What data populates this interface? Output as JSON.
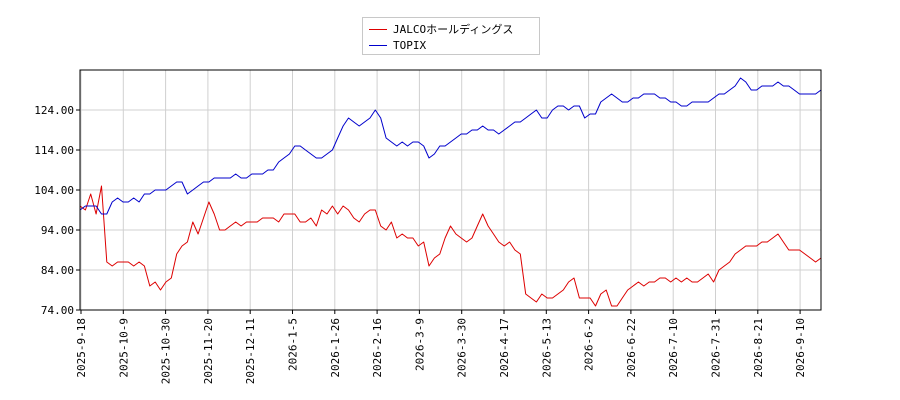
{
  "chart_data": {
    "type": "line",
    "title": "",
    "xlabel": "",
    "ylabel": "",
    "ylim": [
      74,
      134
    ],
    "yticks": [
      74.0,
      84.0,
      94.0,
      104.0,
      114.0,
      124.0
    ],
    "ytick_labels": [
      "74.00",
      "84.00",
      "94.00",
      "104.00",
      "114.00",
      "124.00"
    ],
    "xticks": [
      "2025-9-18",
      "2025-10-9",
      "2025-10-30",
      "2025-11-20",
      "2025-12-11",
      "2026-1-5",
      "2026-1-26",
      "2026-2-16",
      "2026-3-9",
      "2026-3-30",
      "2026-4-17",
      "2026-5-13",
      "2026-6-2",
      "2026-6-22",
      "2026-7-10",
      "2026-7-31",
      "2026-8-21",
      "2026-9-10"
    ],
    "grid": true,
    "legend_position": "top-center",
    "series": [
      {
        "name": "JALCOホールディングス",
        "color": "#dd0000",
        "values": [
          100,
          99,
          103,
          98,
          105,
          86,
          85,
          86,
          86,
          86,
          85,
          86,
          85,
          80,
          81,
          79,
          81,
          82,
          88,
          90,
          91,
          96,
          93,
          97,
          101,
          98,
          94,
          94,
          95,
          96,
          95,
          96,
          96,
          96,
          97,
          97,
          97,
          96,
          98,
          98,
          98,
          96,
          96,
          97,
          95,
          99,
          98,
          100,
          98,
          100,
          99,
          97,
          96,
          98,
          99,
          99,
          95,
          94,
          96,
          92,
          93,
          92,
          92,
          90,
          91,
          85,
          87,
          88,
          92,
          95,
          93,
          92,
          91,
          92,
          95,
          98,
          95,
          93,
          91,
          90,
          91,
          89,
          88,
          78,
          77,
          76,
          78,
          77,
          77,
          78,
          79,
          81,
          82,
          77,
          77,
          77,
          75,
          78,
          79,
          75,
          75,
          77,
          79,
          80,
          81,
          80,
          81,
          81,
          82,
          82,
          81,
          82,
          81,
          82,
          81,
          81,
          82,
          83,
          81,
          84,
          85,
          86,
          88,
          89,
          90,
          90,
          90,
          91,
          91,
          92,
          93,
          91,
          89,
          89,
          89,
          88,
          87,
          86,
          87
        ]
      },
      {
        "name": "TOPIX",
        "color": "#0000cc",
        "values": [
          99,
          100,
          100,
          100,
          98,
          98,
          101,
          102,
          101,
          101,
          102,
          101,
          103,
          103,
          104,
          104,
          104,
          105,
          106,
          106,
          103,
          104,
          105,
          106,
          106,
          107,
          107,
          107,
          107,
          108,
          107,
          107,
          108,
          108,
          108,
          109,
          109,
          111,
          112,
          113,
          115,
          115,
          114,
          113,
          112,
          112,
          113,
          114,
          117,
          120,
          122,
          121,
          120,
          121,
          122,
          124,
          122,
          117,
          116,
          115,
          116,
          115,
          116,
          116,
          115,
          112,
          113,
          115,
          115,
          116,
          117,
          118,
          118,
          119,
          119,
          120,
          119,
          119,
          118,
          119,
          120,
          121,
          121,
          122,
          123,
          124,
          122,
          122,
          124,
          125,
          125,
          124,
          125,
          125,
          122,
          123,
          123,
          126,
          127,
          128,
          127,
          126,
          126,
          127,
          127,
          128,
          128,
          128,
          127,
          127,
          126,
          126,
          125,
          125,
          126,
          126,
          126,
          126,
          127,
          128,
          128,
          129,
          130,
          132,
          131,
          129,
          129,
          130,
          130,
          130,
          131,
          130,
          130,
          129,
          128,
          128,
          128,
          128,
          129
        ]
      }
    ]
  }
}
